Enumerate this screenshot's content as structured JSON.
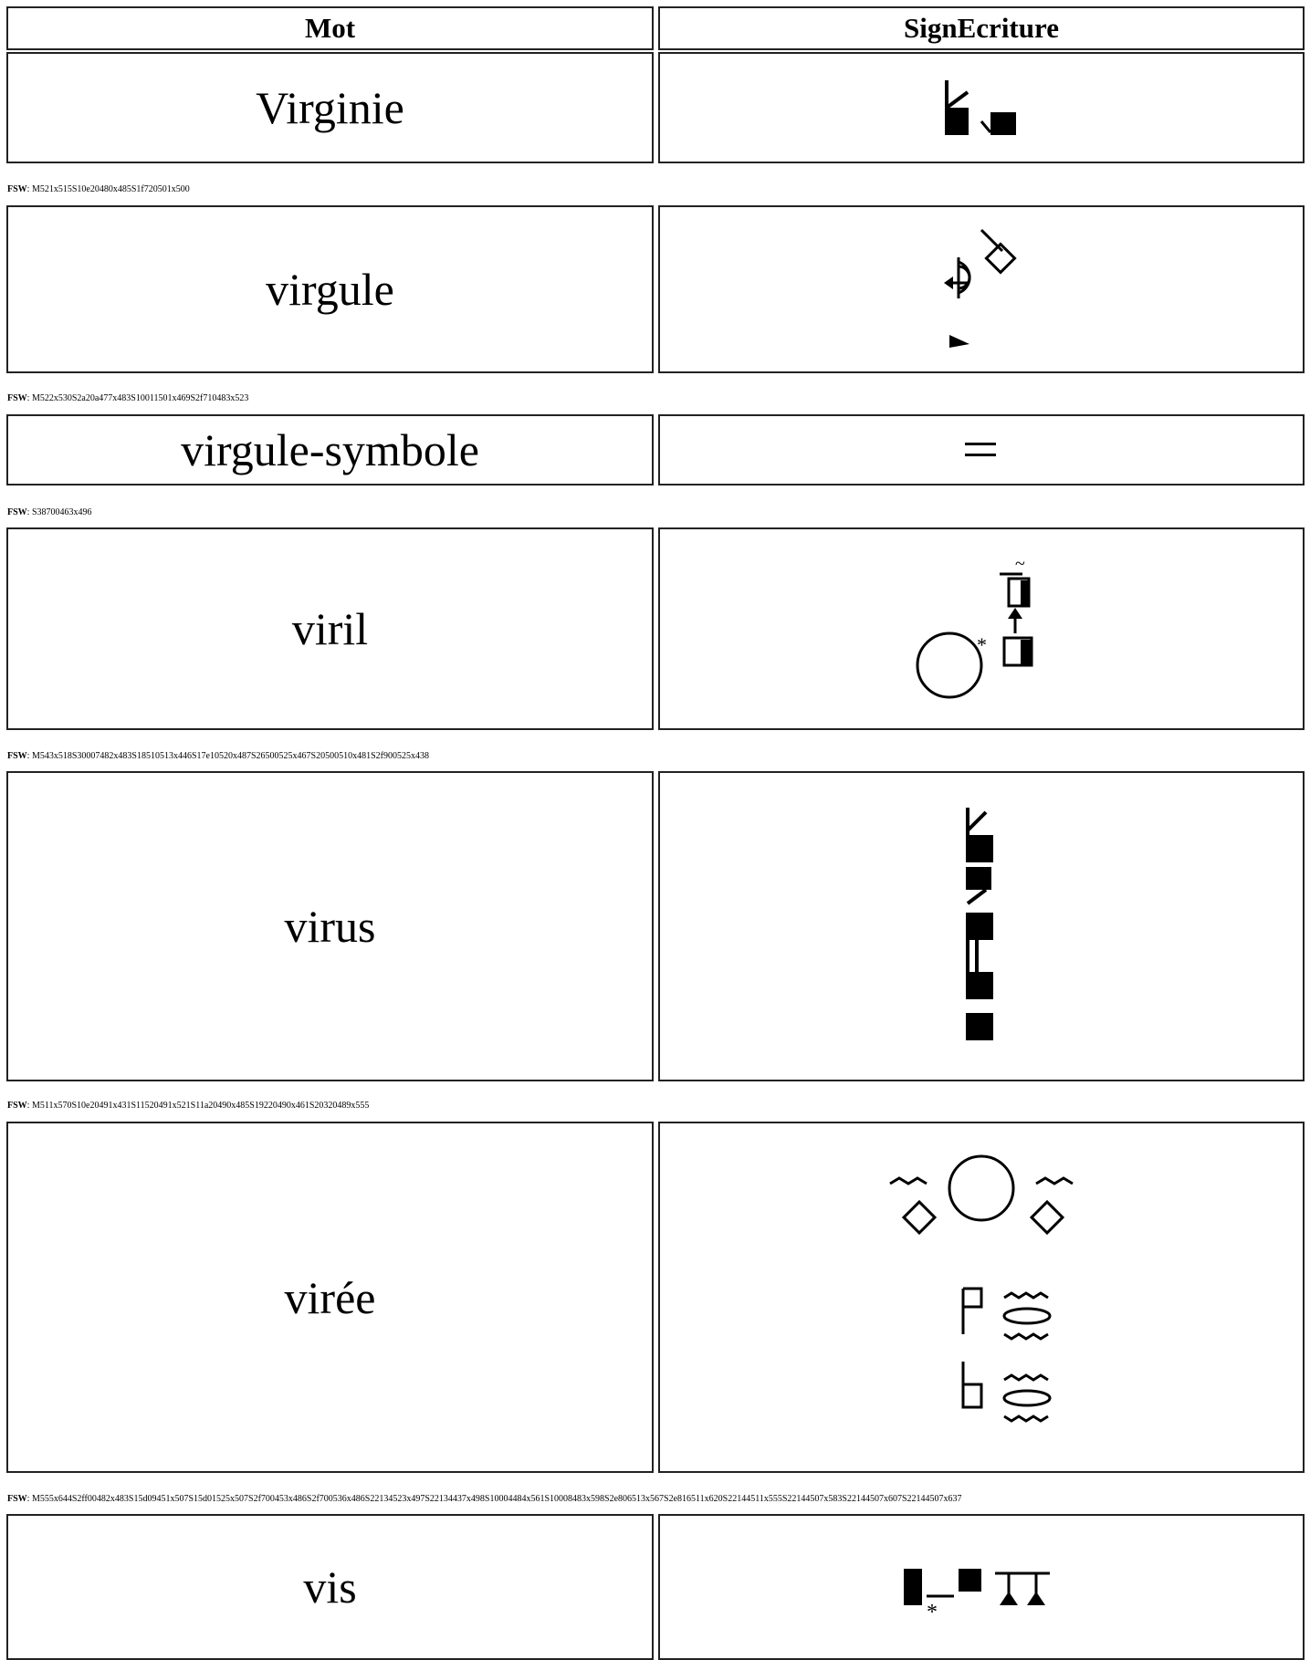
{
  "header": {
    "mot": "Mot",
    "sign": "SignEcriture"
  },
  "rows": [
    {
      "word": "Virginie",
      "fsw_label": "FSW",
      "fsw": ": M521x515S10e20480x485S1f720501x500"
    },
    {
      "word": "virgule",
      "fsw_label": "FSW",
      "fsw": ": M522x530S2a20a477x483S10011501x469S2f710483x523"
    },
    {
      "word": "virgule-symbole",
      "fsw_label": "FSW",
      "fsw": ": S38700463x496"
    },
    {
      "word": "viril",
      "fsw_label": "FSW",
      "fsw": ": M543x518S30007482x483S18510513x446S17e10520x487S26500525x467S20500510x481S2f900525x438"
    },
    {
      "word": "virus",
      "fsw_label": "FSW",
      "fsw": ": M511x570S10e20491x431S11520491x521S11a20490x485S19220490x461S20320489x555"
    },
    {
      "word": "virée",
      "fsw_label": "FSW",
      "fsw": ": M555x644S2ff00482x483S15d09451x507S15d01525x507S2f700453x486S2f700536x486S22134523x497S22134437x498S10004484x561S10008483x598S2e806513x567S2e816511x620S22144511x555S22144507x583S22144507x607S22144507x637"
    },
    {
      "word": "vis"
    }
  ]
}
